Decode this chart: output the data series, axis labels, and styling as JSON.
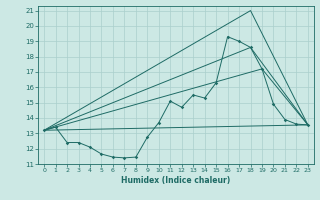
{
  "xlabel": "Humidex (Indice chaleur)",
  "bg_color": "#cce8e4",
  "line_color": "#1e6b65",
  "grid_color": "#aacfcc",
  "xlim": [
    -0.5,
    23.5
  ],
  "ylim": [
    11,
    21.3
  ],
  "xticks": [
    0,
    1,
    2,
    3,
    4,
    5,
    6,
    7,
    8,
    9,
    10,
    11,
    12,
    13,
    14,
    15,
    16,
    17,
    18,
    19,
    20,
    21,
    22,
    23
  ],
  "yticks": [
    11,
    12,
    13,
    14,
    15,
    16,
    17,
    18,
    19,
    20,
    21
  ],
  "line1_x": [
    0,
    1,
    2,
    3,
    4,
    5,
    6,
    7,
    8,
    9,
    10,
    11,
    12,
    13,
    14,
    15,
    16,
    17,
    18,
    19,
    20,
    21,
    22,
    23
  ],
  "line1_y": [
    13.2,
    13.4,
    12.4,
    12.4,
    12.1,
    11.65,
    11.45,
    11.4,
    11.45,
    12.75,
    13.7,
    15.1,
    14.7,
    15.5,
    15.3,
    16.3,
    19.3,
    19.0,
    18.6,
    17.2,
    14.9,
    13.9,
    13.6,
    13.55
  ],
  "line2_x": [
    0,
    23
  ],
  "line2_y": [
    13.2,
    13.55
  ],
  "line3_x": [
    0,
    19,
    23
  ],
  "line3_y": [
    13.2,
    17.2,
    13.55
  ],
  "line4_x": [
    0,
    18,
    23
  ],
  "line4_y": [
    13.2,
    18.6,
    13.55
  ],
  "line5_x": [
    0,
    18,
    23
  ],
  "line5_y": [
    13.2,
    21.0,
    13.55
  ]
}
